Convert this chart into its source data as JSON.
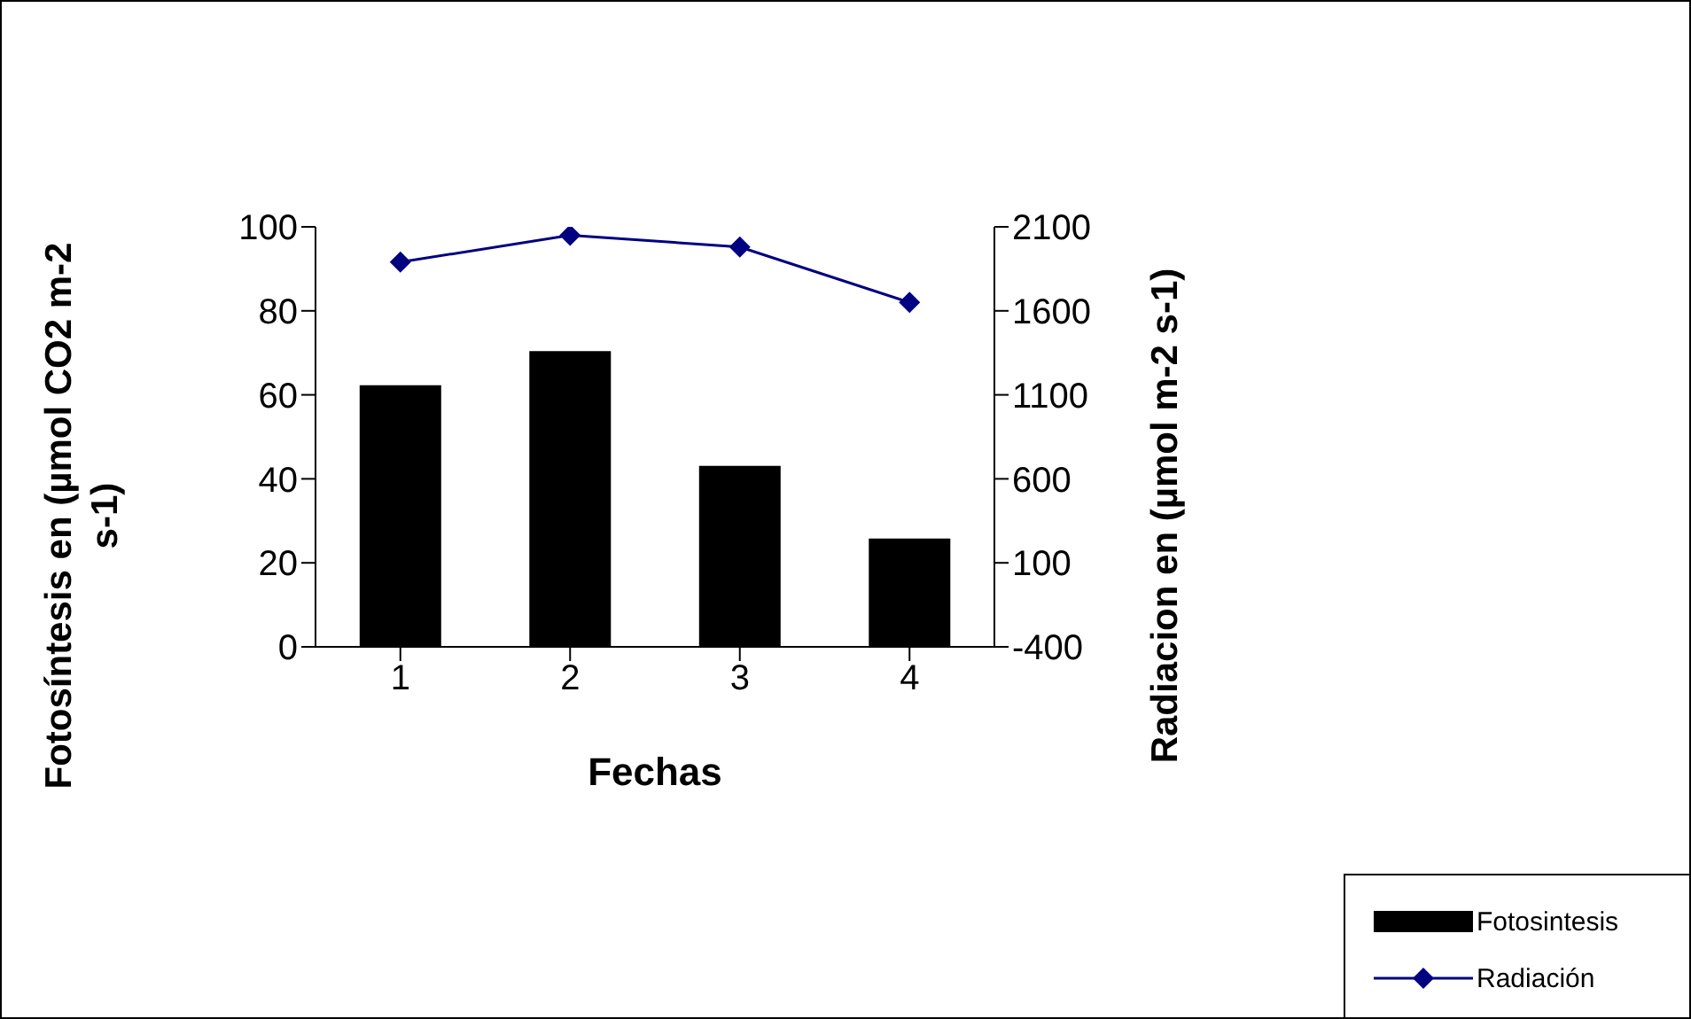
{
  "chart_data": {
    "type": "bar",
    "categories": [
      "1",
      "2",
      "3",
      "4"
    ],
    "xlabel": "Fechas",
    "ylabel": "Fotosíntesis en (µmol CO2 m-2 s-1)",
    "y2label": "Radiacion en (µmol m-2 s-1)",
    "series": [
      {
        "name": "Fotosintesis",
        "color": "#000000",
        "values": [
          62.3,
          70.4,
          43.1,
          25.8
        ]
      },
      {
        "name": "Radiación",
        "type": "line",
        "axis": "y2",
        "color": "#000080",
        "marker": "diamond",
        "values": [
          1890,
          2050,
          1980,
          1650
        ]
      }
    ],
    "ylim": [
      0,
      100
    ],
    "yticks": [
      0,
      20,
      40,
      60,
      80,
      100
    ],
    "y2lim": [
      -400,
      2100
    ],
    "y2ticks": [
      -400,
      100,
      600,
      1100,
      1600,
      2100
    ],
    "grid": false,
    "legend": "bottom right"
  }
}
